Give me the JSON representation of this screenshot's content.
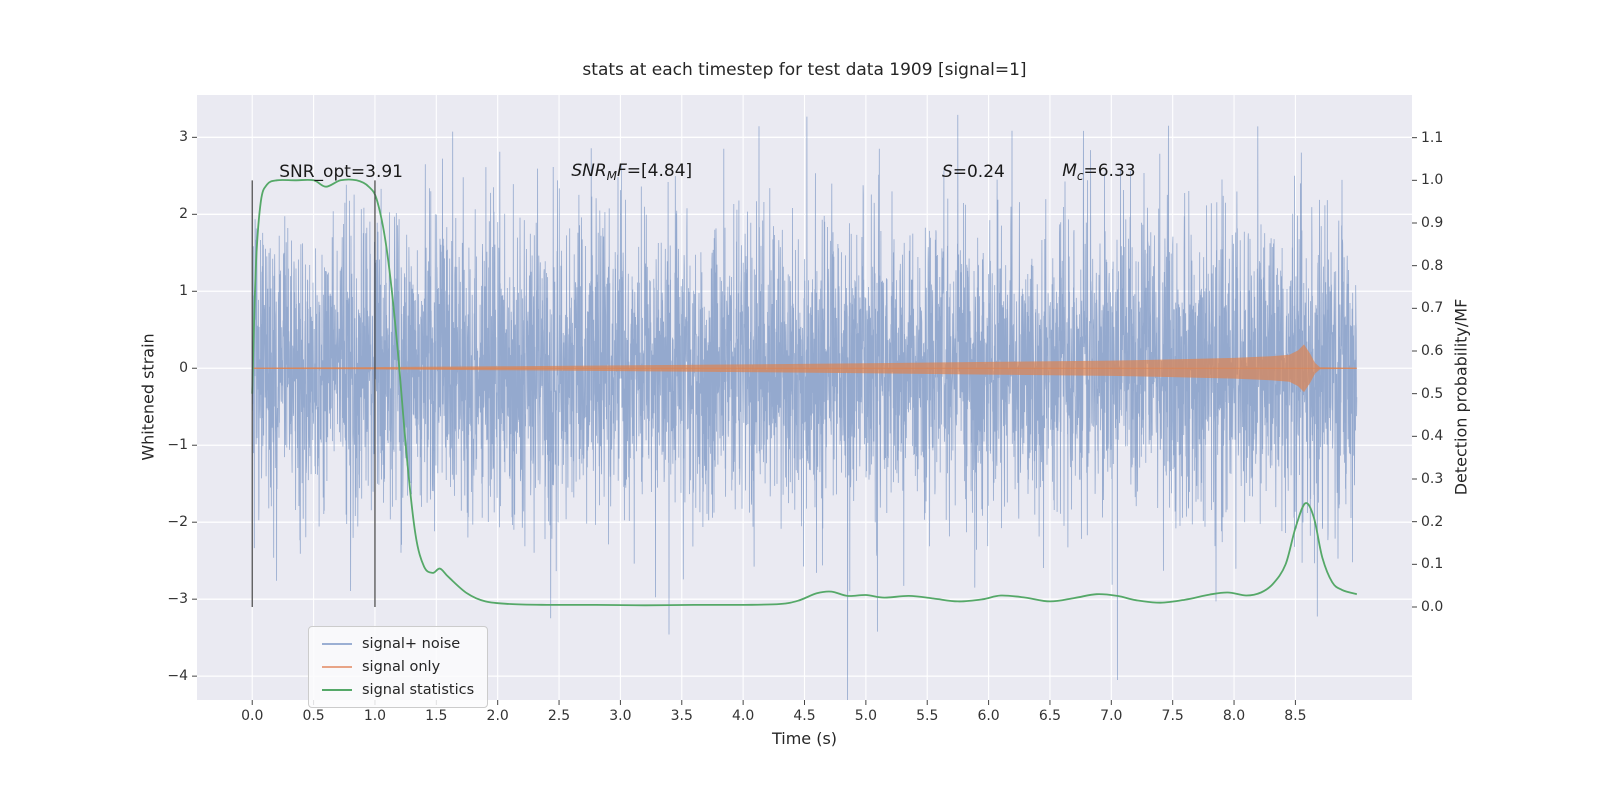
{
  "chart_data": {
    "type": "line",
    "title": "stats at each timestep for test data 1909 [signal=1]",
    "xlabel": "Time (s)",
    "ylabel_left": "Whitened strain",
    "ylabel_right": "Detection probability/MF",
    "background": "#eaeaf2",
    "grid_color": "#ffffff",
    "xlim": [
      -0.45,
      9.45
    ],
    "ylim_left": [
      -4.31,
      3.55
    ],
    "ylim_right": [
      -0.218,
      1.2
    ],
    "x_ticks": {
      "values": [
        0,
        0.5,
        1,
        1.5,
        2,
        2.5,
        3,
        3.5,
        4,
        4.5,
        5,
        5.5,
        6,
        6.5,
        7,
        7.5,
        8,
        8.5
      ],
      "labels": [
        "0.0",
        "0.5",
        "1.0",
        "1.5",
        "2.0",
        "2.5",
        "3.0",
        "3.5",
        "4.0",
        "4.5",
        "5.0",
        "5.5",
        "6.0",
        "6.5",
        "7.0",
        "7.5",
        "8.0",
        "8.5"
      ]
    },
    "y_ticks_left": {
      "values": [
        3,
        2,
        1,
        0,
        -1,
        -2,
        -3,
        -4
      ],
      "labels": [
        "3",
        "2",
        "1",
        "0",
        "−1",
        "−2",
        "−3",
        "−4"
      ]
    },
    "y_ticks_right": {
      "values": [
        1.1,
        1.0,
        0.9,
        0.8,
        0.7,
        0.6,
        0.5,
        0.4,
        0.3,
        0.2,
        0.1,
        0.0
      ],
      "labels": [
        "1.1",
        "1.0",
        "0.9",
        "0.8",
        "0.7",
        "0.6",
        "0.5",
        "0.4",
        "0.3",
        "0.2",
        "0.1",
        "0.0"
      ]
    },
    "series": [
      {
        "name": "signal+ noise",
        "axis": "left",
        "style": "noise-line",
        "color": "#4c72b0",
        "opacity": 0.55,
        "t_start": 0,
        "t_end": 9.0,
        "n": 5400,
        "std": 0.95,
        "seed": 1909,
        "outliers": [
          [
            4.52,
            3.27
          ],
          [
            7.05,
            -4.05
          ]
        ]
      },
      {
        "name": "signal only",
        "axis": "left",
        "style": "chirp-envelope",
        "color": "#dd8452",
        "opacity": 0.7,
        "envelope": [
          [
            0,
            0.008
          ],
          [
            1,
            0.015
          ],
          [
            2,
            0.025
          ],
          [
            3,
            0.037
          ],
          [
            4,
            0.05
          ],
          [
            5,
            0.065
          ],
          [
            6,
            0.082
          ],
          [
            6.5,
            0.09
          ],
          [
            7,
            0.1
          ],
          [
            7.5,
            0.115
          ],
          [
            8,
            0.135
          ],
          [
            8.3,
            0.155
          ],
          [
            8.45,
            0.175
          ],
          [
            8.52,
            0.23
          ],
          [
            8.57,
            0.31
          ],
          [
            8.62,
            0.19
          ],
          [
            8.66,
            0.07
          ],
          [
            8.7,
            0.012
          ],
          [
            9,
            0.007
          ]
        ]
      },
      {
        "name": "signal statistics",
        "axis": "right",
        "style": "smooth-line",
        "color": "#55a868",
        "width": 1.8,
        "points": [
          [
            0,
            0.5
          ],
          [
            0.03,
            0.8
          ],
          [
            0.07,
            0.95
          ],
          [
            0.12,
            0.99
          ],
          [
            0.2,
            1.0
          ],
          [
            0.35,
            1.0
          ],
          [
            0.5,
            1.0
          ],
          [
            0.6,
            0.985
          ],
          [
            0.72,
            1.0
          ],
          [
            0.85,
            1.0
          ],
          [
            0.95,
            0.985
          ],
          [
            1.02,
            0.95
          ],
          [
            1.1,
            0.83
          ],
          [
            1.18,
            0.62
          ],
          [
            1.26,
            0.35
          ],
          [
            1.33,
            0.17
          ],
          [
            1.4,
            0.095
          ],
          [
            1.47,
            0.08
          ],
          [
            1.53,
            0.09
          ],
          [
            1.6,
            0.07
          ],
          [
            1.75,
            0.032
          ],
          [
            1.9,
            0.013
          ],
          [
            2.1,
            0.007
          ],
          [
            2.4,
            0.005
          ],
          [
            2.8,
            0.005
          ],
          [
            3.2,
            0.004
          ],
          [
            3.6,
            0.005
          ],
          [
            4.0,
            0.005
          ],
          [
            4.3,
            0.007
          ],
          [
            4.45,
            0.015
          ],
          [
            4.6,
            0.032
          ],
          [
            4.72,
            0.036
          ],
          [
            4.85,
            0.026
          ],
          [
            5.0,
            0.028
          ],
          [
            5.15,
            0.022
          ],
          [
            5.35,
            0.026
          ],
          [
            5.55,
            0.02
          ],
          [
            5.75,
            0.013
          ],
          [
            5.95,
            0.018
          ],
          [
            6.1,
            0.027
          ],
          [
            6.3,
            0.022
          ],
          [
            6.5,
            0.013
          ],
          [
            6.7,
            0.021
          ],
          [
            6.88,
            0.03
          ],
          [
            7.05,
            0.026
          ],
          [
            7.2,
            0.016
          ],
          [
            7.4,
            0.01
          ],
          [
            7.6,
            0.017
          ],
          [
            7.8,
            0.029
          ],
          [
            7.95,
            0.034
          ],
          [
            8.1,
            0.027
          ],
          [
            8.22,
            0.034
          ],
          [
            8.32,
            0.055
          ],
          [
            8.42,
            0.1
          ],
          [
            8.5,
            0.185
          ],
          [
            8.58,
            0.243
          ],
          [
            8.65,
            0.21
          ],
          [
            8.72,
            0.115
          ],
          [
            8.8,
            0.058
          ],
          [
            8.88,
            0.04
          ],
          [
            9.0,
            0.03
          ]
        ]
      }
    ],
    "markers": {
      "color": "#464646",
      "vlines": [
        0.0,
        1.0
      ],
      "span_axis": "right",
      "y0": 0.0,
      "y1": 1.0
    }
  },
  "annotations": {
    "snr_opt": {
      "text": "SNR_opt=3.91",
      "t": 0.22,
      "strain": 2.55
    },
    "snr_mf": {
      "p1": "SNR",
      "p2": "M",
      "p3": "F",
      "p4": "=[4.84]",
      "t": 2.6,
      "strain": 2.55
    },
    "s_stat": {
      "p1": "S",
      "p2": "=0.24",
      "t": 5.62,
      "strain": 2.55
    },
    "m_c": {
      "p1": "M",
      "p2": "c",
      "p3": "=6.33",
      "t": 6.6,
      "strain": 2.55
    }
  },
  "legend": {
    "items": [
      {
        "label": "signal+ noise",
        "color": "#9bafd3"
      },
      {
        "label": "signal only",
        "color": "#e8a486"
      },
      {
        "label": "signal statistics",
        "color": "#55a868"
      }
    ]
  }
}
